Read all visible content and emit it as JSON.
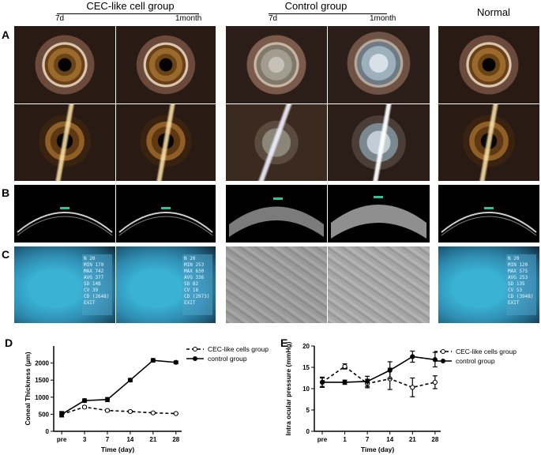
{
  "headers": {
    "cec": "CEC-like cell group",
    "control": "Control group",
    "normal": "Normal",
    "cec_7d": "7d",
    "cec_1m": "1month",
    "ctrl_7d": "7d",
    "ctrl_1m": "1month"
  },
  "panel_labels": {
    "A": "A",
    "B": "B",
    "C": "C",
    "D": "D",
    "E": "E"
  },
  "specular": {
    "cec_7d": [
      "N    20",
      "MIN  179",
      "MAX  742",
      "AVG  377",
      "SD   148",
      "CV   39",
      "CD (2648)"
    ],
    "cec_1m": [
      "N    20",
      "MIN  253",
      "MAX  630",
      "AVG  336",
      "SD   82",
      "CV   18",
      "CD (2973)"
    ],
    "normal": [
      "N    20",
      "MIN  120",
      "MAX  575",
      "AVG  253",
      "SD   135",
      "CV   53",
      "CD (3948)"
    ],
    "exit": "EXIT"
  },
  "chart_data": [
    {
      "type": "line",
      "panel": "D",
      "xlabel": "Time (day)",
      "ylabel": "Coneal Thickness (μm)",
      "x": [
        "pre",
        "3",
        "7",
        "14",
        "21",
        "28"
      ],
      "ylim": [
        0,
        2500
      ],
      "yticks": [
        0,
        500,
        1000,
        1500,
        2000
      ],
      "legend_position": "top-right",
      "series": [
        {
          "name": "CEC-like cells group",
          "values": [
            500,
            710,
            610,
            580,
            540,
            520
          ],
          "errors": [
            60,
            30,
            25,
            25,
            20,
            20
          ],
          "style": "dashed",
          "marker": "open-circle"
        },
        {
          "name": "control group",
          "values": [
            500,
            900,
            930,
            1500,
            2080,
            2020
          ],
          "errors": [
            80,
            50,
            60,
            50,
            50,
            40
          ],
          "style": "solid",
          "marker": "filled-circle"
        }
      ]
    },
    {
      "type": "line",
      "panel": "E",
      "xlabel": "Time (day)",
      "ylabel": "Intra ocular pressure (mmHg)",
      "x": [
        "pre",
        "1",
        "7",
        "14",
        "21",
        "28"
      ],
      "ylim": [
        0,
        20
      ],
      "yticks": [
        0,
        5,
        10,
        15,
        20
      ],
      "legend_position": "top-right",
      "series": [
        {
          "name": "CEC-like cells group",
          "values": [
            11.5,
            15.2,
            11.2,
            12.3,
            10.3,
            11.5
          ],
          "errors": [
            1.0,
            0.6,
            1.0,
            2.5,
            2.2,
            1.5
          ],
          "style": "dashed",
          "marker": "open-circle"
        },
        {
          "name": "control group",
          "values": [
            11.5,
            11.5,
            11.7,
            14.3,
            17.5,
            16.8
          ],
          "errors": [
            1.2,
            0.5,
            1.2,
            2.0,
            1.3,
            1.7
          ],
          "style": "solid",
          "marker": "filled-circle"
        }
      ]
    }
  ]
}
